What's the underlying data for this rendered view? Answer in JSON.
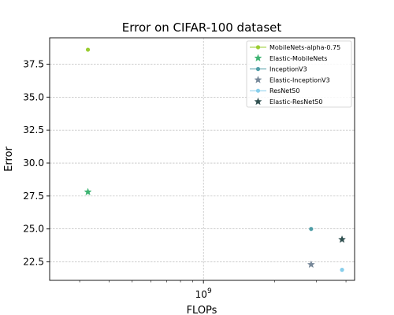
{
  "chart_data": {
    "type": "scatter",
    "title": "Error on CIFAR-100 dataset",
    "xlabel": "FLOPs",
    "ylabel": "Error",
    "xscale": "log",
    "xlim": [
      224000000,
      4350000000
    ],
    "ylim": [
      21.1,
      39.5
    ],
    "yticks": [
      22.5,
      25.0,
      27.5,
      30.0,
      32.5,
      35.0,
      37.5
    ],
    "ytick_labels": [
      "22.5",
      "25.0",
      "27.5",
      "30.0",
      "32.5",
      "35.0",
      "37.5"
    ],
    "xticks": [
      1000000000
    ],
    "xtick_labels": [
      {
        "base": "10",
        "exp": "9"
      }
    ],
    "x_minor_ticks": [
      300000000,
      400000000,
      500000000,
      600000000,
      700000000,
      800000000,
      900000000,
      2000000000,
      3000000000,
      4000000000
    ],
    "grid": true,
    "legend_position": "top-right",
    "series": [
      {
        "name": "MobileNets-alpha-0.75",
        "color": "#9acd32",
        "marker": "circle",
        "linestyle": "solid",
        "points": [
          {
            "x": 325000000,
            "y": 38.6
          }
        ]
      },
      {
        "name": "Elastic-MobileNets",
        "color": "#3cb371",
        "marker": "star",
        "linestyle": "none",
        "points": [
          {
            "x": 325000000,
            "y": 27.8
          }
        ]
      },
      {
        "name": "InceptionV3",
        "color": "#4f9da6",
        "marker": "circle",
        "linestyle": "solid",
        "points": [
          {
            "x": 2850000000,
            "y": 25.0
          }
        ]
      },
      {
        "name": "Elastic-InceptionV3",
        "color": "#778899",
        "marker": "star",
        "linestyle": "none",
        "points": [
          {
            "x": 2850000000,
            "y": 22.3
          }
        ]
      },
      {
        "name": "ResNet50",
        "color": "#87ceeb",
        "marker": "circle",
        "linestyle": "solid",
        "points": [
          {
            "x": 3850000000,
            "y": 21.9
          }
        ]
      },
      {
        "name": "Elastic-ResNet50",
        "color": "#2f4f4f",
        "marker": "star",
        "linestyle": "none",
        "points": [
          {
            "x": 3850000000,
            "y": 24.2
          }
        ]
      }
    ]
  }
}
